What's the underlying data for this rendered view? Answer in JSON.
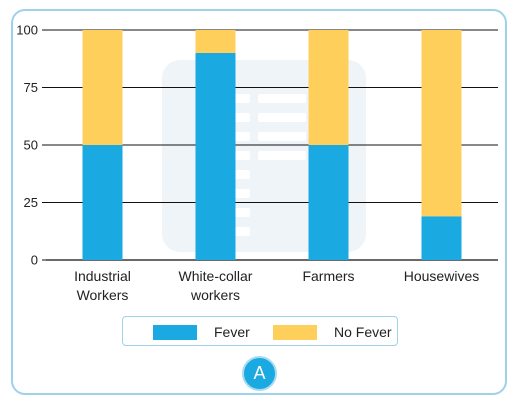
{
  "chart_data": {
    "type": "bar",
    "stacked": true,
    "categories": [
      [
        "Industrial",
        "Workers"
      ],
      [
        "White-collar",
        "workers"
      ],
      [
        "Farmers"
      ],
      [
        "Housewives"
      ]
    ],
    "series": [
      {
        "name": "Fever",
        "color": "#1aa9e1",
        "values": [
          50,
          90,
          50,
          19
        ]
      },
      {
        "name": "No Fever",
        "color": "#ffcf5c",
        "values": [
          50,
          10,
          50,
          81
        ]
      }
    ],
    "ylim": [
      0,
      100
    ],
    "yticks": [
      0,
      25,
      50,
      75,
      100
    ],
    "grid": true,
    "legend": "bottom"
  },
  "legend": {
    "fever_label": "Fever",
    "no_fever_label": "No Fever"
  },
  "panel_label": "A"
}
